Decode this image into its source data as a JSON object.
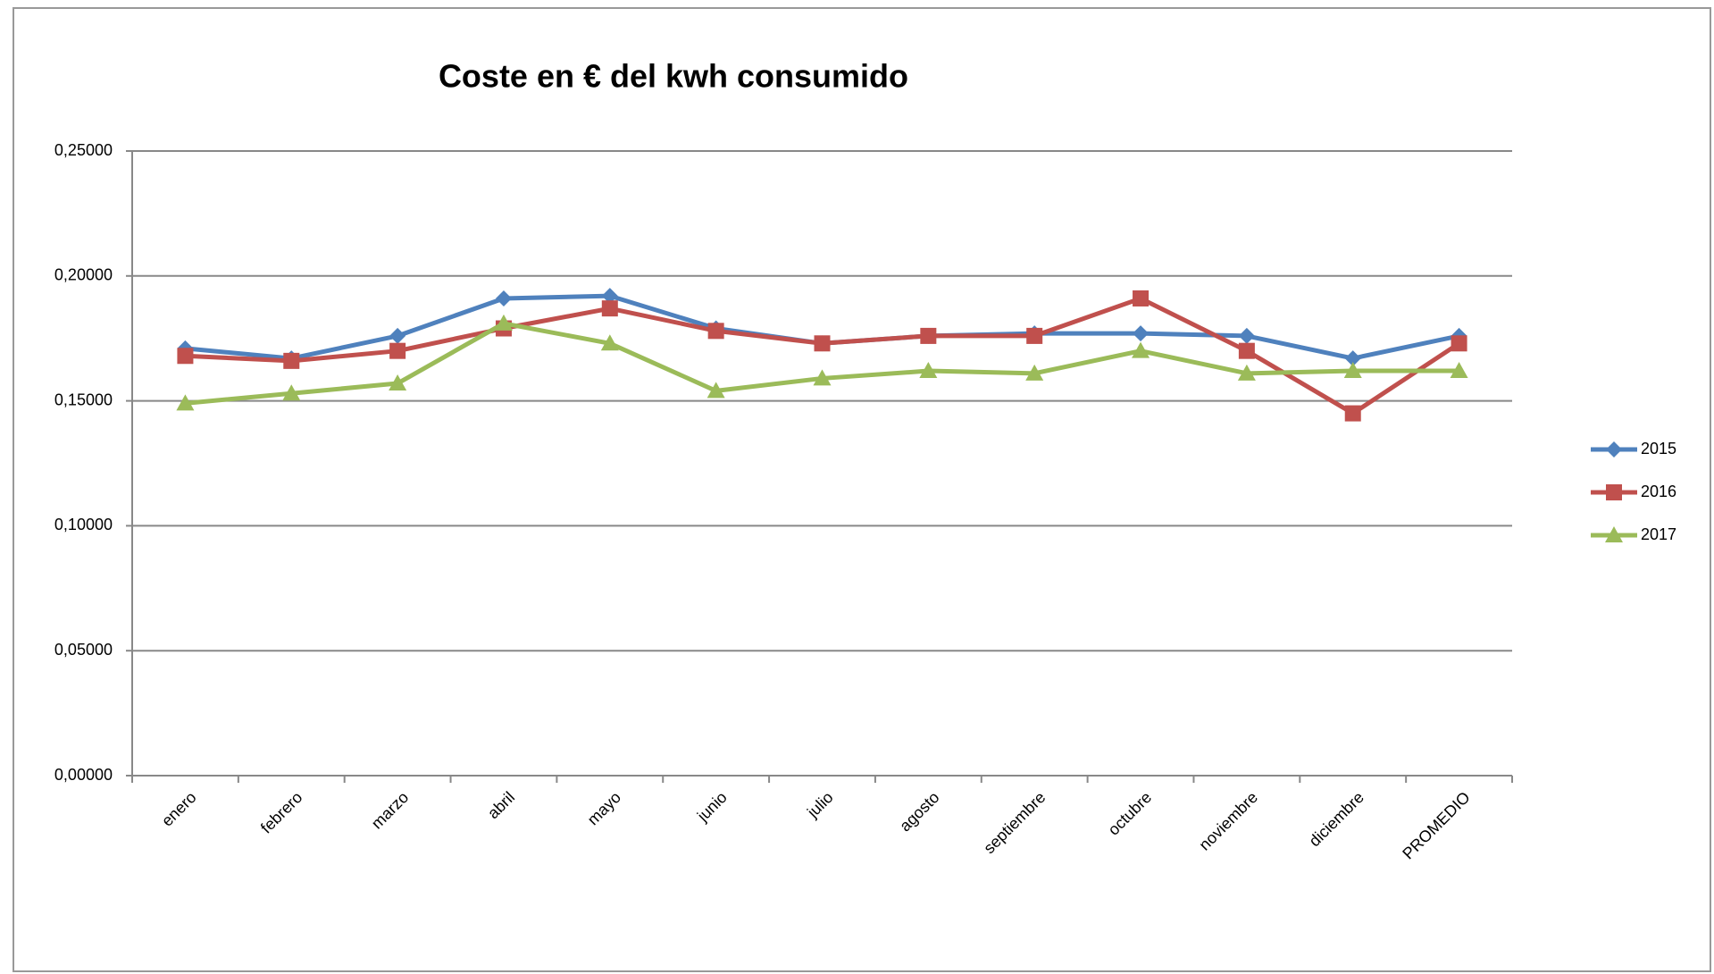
{
  "chart_data": {
    "type": "line",
    "title": "Coste en € del kwh consumido",
    "categories": [
      "enero",
      "febrero",
      "marzo",
      "abril",
      "mayo",
      "junio",
      "julio",
      "agosto",
      "septiembre",
      "octubre",
      "noviembre",
      "diciembre",
      "PROMEDIO"
    ],
    "series": [
      {
        "name": "2015",
        "color": "#4f81bd",
        "marker": "diamond",
        "values": [
          0.171,
          0.167,
          0.176,
          0.191,
          0.192,
          0.179,
          0.173,
          0.176,
          0.177,
          0.177,
          0.176,
          0.167,
          0.176
        ]
      },
      {
        "name": "2016",
        "color": "#c0504d",
        "marker": "square",
        "values": [
          0.168,
          0.166,
          0.17,
          0.179,
          0.187,
          0.178,
          0.173,
          0.176,
          0.176,
          0.191,
          0.17,
          0.145,
          0.173
        ]
      },
      {
        "name": "2017",
        "color": "#9bbb59",
        "marker": "triangle",
        "values": [
          0.149,
          0.153,
          0.157,
          0.181,
          0.173,
          0.154,
          0.159,
          0.162,
          0.161,
          0.17,
          0.161,
          0.162,
          0.162
        ]
      }
    ],
    "ylim": [
      0,
      0.25
    ],
    "yticks": [
      {
        "value": 0,
        "label": "0,00000"
      },
      {
        "value": 0.05,
        "label": "0,05000"
      },
      {
        "value": 0.1,
        "label": "0,10000"
      },
      {
        "value": 0.15,
        "label": "0,15000"
      },
      {
        "value": 0.2,
        "label": "0,20000"
      },
      {
        "value": 0.25,
        "label": "0,25000"
      }
    ],
    "grid": true,
    "legend": "right"
  }
}
